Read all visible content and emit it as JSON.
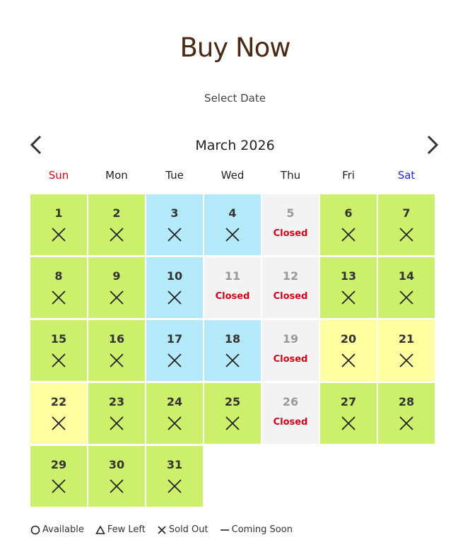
{
  "header": {
    "title": "Buy Now",
    "subtitle": "Select Date"
  },
  "calendar": {
    "month": "March 2026",
    "prev_label": "previous-month",
    "next_label": "next-month",
    "weekdays": [
      "Sun",
      "Mon",
      "Tue",
      "Wed",
      "Thu",
      "Fri",
      "Sat"
    ],
    "colors": {
      "green": "#cdf06c",
      "blue": "#b3e9f8",
      "yellow": "#fffea0",
      "closed": "#f3f3f3",
      "sun": "#d0021b",
      "sat": "#2424d0",
      "title": "#4a2a14"
    },
    "start_offset": 0,
    "closed_label": "Closed",
    "days": [
      {
        "d": "1",
        "t": "green",
        "s": "sold-out"
      },
      {
        "d": "2",
        "t": "green",
        "s": "sold-out"
      },
      {
        "d": "3",
        "t": "blue",
        "s": "sold-out"
      },
      {
        "d": "4",
        "t": "blue",
        "s": "sold-out"
      },
      {
        "d": "5",
        "t": "closed",
        "s": "closed"
      },
      {
        "d": "6",
        "t": "green",
        "s": "sold-out"
      },
      {
        "d": "7",
        "t": "green",
        "s": "sold-out"
      },
      {
        "d": "8",
        "t": "green",
        "s": "sold-out"
      },
      {
        "d": "9",
        "t": "green",
        "s": "sold-out"
      },
      {
        "d": "10",
        "t": "blue",
        "s": "sold-out"
      },
      {
        "d": "11",
        "t": "closed",
        "s": "closed"
      },
      {
        "d": "12",
        "t": "closed",
        "s": "closed"
      },
      {
        "d": "13",
        "t": "green",
        "s": "sold-out"
      },
      {
        "d": "14",
        "t": "green",
        "s": "sold-out"
      },
      {
        "d": "15",
        "t": "green",
        "s": "sold-out"
      },
      {
        "d": "16",
        "t": "green",
        "s": "sold-out"
      },
      {
        "d": "17",
        "t": "blue",
        "s": "sold-out"
      },
      {
        "d": "18",
        "t": "blue",
        "s": "sold-out"
      },
      {
        "d": "19",
        "t": "closed",
        "s": "closed"
      },
      {
        "d": "20",
        "t": "yellow",
        "s": "sold-out"
      },
      {
        "d": "21",
        "t": "yellow",
        "s": "sold-out"
      },
      {
        "d": "22",
        "t": "yellow",
        "s": "sold-out"
      },
      {
        "d": "23",
        "t": "green",
        "s": "sold-out"
      },
      {
        "d": "24",
        "t": "green",
        "s": "sold-out"
      },
      {
        "d": "25",
        "t": "green",
        "s": "sold-out"
      },
      {
        "d": "26",
        "t": "closed",
        "s": "closed"
      },
      {
        "d": "27",
        "t": "green",
        "s": "sold-out"
      },
      {
        "d": "28",
        "t": "green",
        "s": "sold-out"
      },
      {
        "d": "29",
        "t": "green",
        "s": "sold-out"
      },
      {
        "d": "30",
        "t": "green",
        "s": "sold-out"
      },
      {
        "d": "31",
        "t": "green",
        "s": "sold-out"
      }
    ]
  },
  "legend": [
    {
      "icon": "circle-icon",
      "label": "Available"
    },
    {
      "icon": "triangle-icon",
      "label": "Few Left"
    },
    {
      "icon": "x-icon",
      "label": "Sold Out"
    },
    {
      "icon": "dash-icon",
      "label": "Coming Soon"
    }
  ]
}
